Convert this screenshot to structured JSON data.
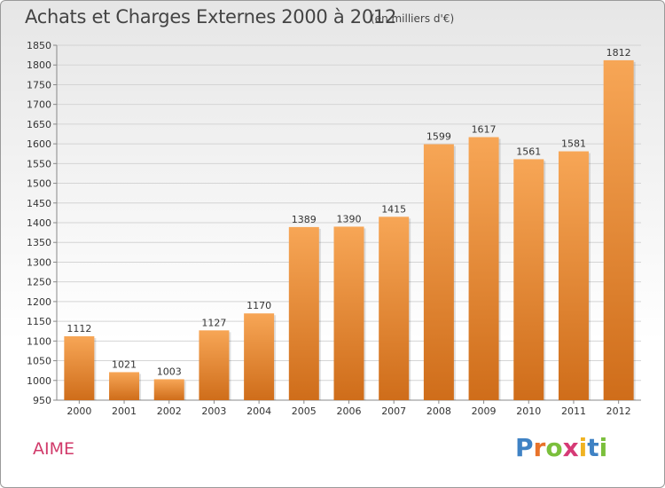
{
  "header": {
    "title": "Achats et Charges Externes 2000 à 2012",
    "subtitle": "(en milliers d'€)"
  },
  "footer": {
    "commune": "AIME",
    "logo": [
      "P",
      "r",
      "o",
      "x",
      "i",
      "t",
      "i"
    ]
  },
  "colors": {
    "bar_top": "#f7a656",
    "bar_bottom": "#cf6d1a",
    "logo": [
      "#3f82c4",
      "#e8732a",
      "#7bbf3c",
      "#d63a76",
      "#f0b323",
      "#3f82c4",
      "#7bbf3c"
    ]
  },
  "chart_data": {
    "type": "bar",
    "title": "Achats et Charges Externes 2000 à 2012",
    "subtitle": "(en milliers d'€)",
    "categories": [
      "2000",
      "2001",
      "2002",
      "2003",
      "2004",
      "2005",
      "2006",
      "2007",
      "2008",
      "2009",
      "2010",
      "2011",
      "2012"
    ],
    "values": [
      1112,
      1021,
      1003,
      1127,
      1170,
      1389,
      1390,
      1415,
      1599,
      1617,
      1561,
      1581,
      1812
    ],
    "ylim": [
      950,
      1850
    ],
    "yticks": [
      950,
      1000,
      1050,
      1100,
      1150,
      1200,
      1250,
      1300,
      1350,
      1400,
      1450,
      1500,
      1550,
      1600,
      1650,
      1700,
      1750,
      1800,
      1850
    ],
    "grid": true,
    "legend": "none"
  }
}
